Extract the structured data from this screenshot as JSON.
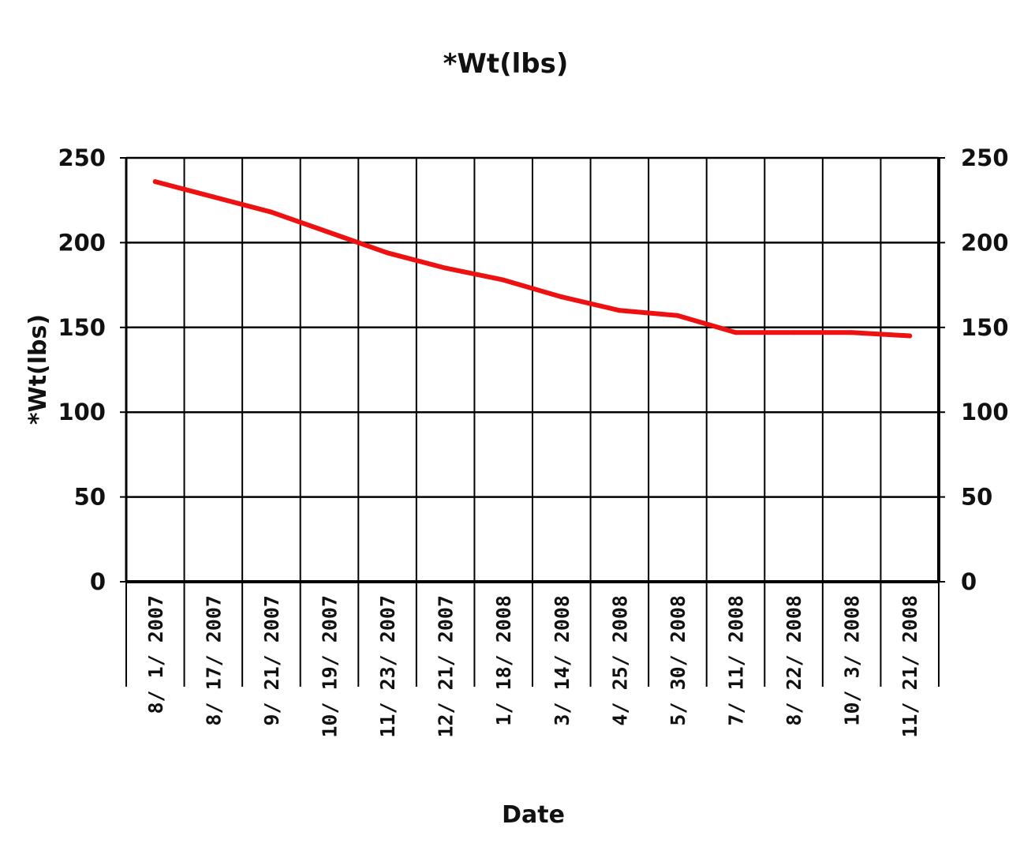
{
  "chart_data": {
    "type": "line",
    "title": "*Wt(lbs)",
    "xlabel": "Date",
    "ylabel": "*Wt(lbs)",
    "ylim": [
      0,
      250
    ],
    "yticks": [
      0,
      50,
      100,
      150,
      200,
      250
    ],
    "secondary_y_axis": true,
    "grid": true,
    "legend": "none",
    "categories": [
      "8/1/2007",
      "8/17/2007",
      "9/21/2007",
      "10/19/2007",
      "11/23/2007",
      "12/21/2007",
      "1/18/2008",
      "3/14/2008",
      "4/25/2008",
      "5/30/2008",
      "7/11/2008",
      "8/22/2008",
      "10/3/2008",
      "11/21/2008"
    ],
    "series": [
      {
        "values": [
          236,
          227,
          218,
          206,
          194,
          185,
          178,
          168,
          160,
          157,
          147,
          147,
          147,
          145
        ]
      }
    ],
    "colors": {
      "line": "#ee1111",
      "grid": "#000000"
    }
  }
}
